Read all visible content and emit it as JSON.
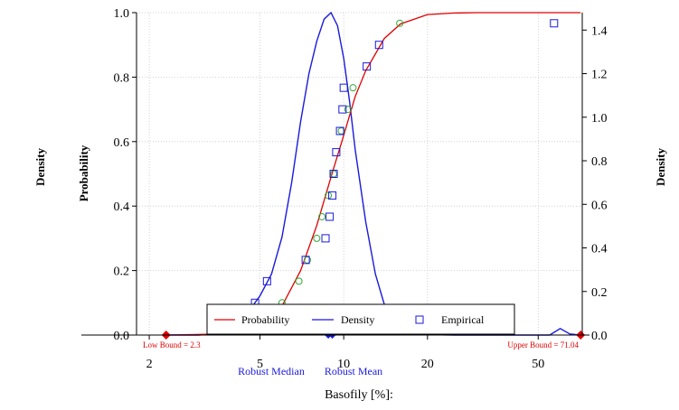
{
  "chart_data": {
    "type": "line",
    "xlabel": "Basofily [%]:",
    "ylabel_left_outer": "Density",
    "ylabel_left": "Probability",
    "ylabel_right": "Density",
    "x_scale": "log",
    "xlim": [
      1.8,
      72
    ],
    "x_ticks": [
      2,
      5,
      10,
      20,
      50
    ],
    "y_left_lim": [
      0,
      1
    ],
    "y_left_ticks": [
      "0.0",
      "0.2",
      "0.4",
      "0.6",
      "0.8",
      "1.0"
    ],
    "y_right_lim": [
      0,
      1.48
    ],
    "y_right_ticks": [
      "0.0",
      "0.2",
      "0.4",
      "0.6",
      "0.8",
      "1.0",
      "1.2",
      "1.4"
    ],
    "grid": true,
    "legend_position": "bottom-center",
    "colors": {
      "probability": "#e00000",
      "density": "#1a1adc",
      "empirical": "#1a1adc",
      "fitted_points": "#33aa33",
      "bounds": "#e00000"
    },
    "legend": {
      "probability": "Probability",
      "density": "Density",
      "empirical": "Empirical"
    },
    "bounds": {
      "low": {
        "value": 2.3,
        "label": "Low Bound = 2.3"
      },
      "upper": {
        "value": 71.04,
        "label": "Upper Bound = 71.04"
      }
    },
    "robust": {
      "median": {
        "value": 8.8,
        "label": "Robust Median"
      },
      "mean": {
        "value": 9.1,
        "label": "Robust Mean"
      }
    },
    "probability_curve": {
      "name": "Probability",
      "x": [
        2.3,
        4,
        5,
        6,
        7,
        8,
        9,
        10,
        11,
        12,
        14,
        16,
        20,
        25,
        30,
        71
      ],
      "y": [
        0.0,
        0.004,
        0.026,
        0.09,
        0.2,
        0.34,
        0.49,
        0.62,
        0.74,
        0.82,
        0.92,
        0.965,
        0.994,
        0.999,
        1.0,
        1.0
      ]
    },
    "density_curve": {
      "name": "Density",
      "x": [
        2.3,
        3,
        3.5,
        4,
        4.5,
        5,
        5.5,
        6,
        6.5,
        7,
        7.5,
        8,
        8.5,
        9,
        9.5,
        10,
        10.5,
        11,
        12,
        13,
        14,
        15,
        16,
        18,
        20,
        25,
        40,
        55,
        60,
        65,
        71
      ],
      "y": [
        0.0,
        0.0,
        0.005,
        0.03,
        0.1,
        0.18,
        0.28,
        0.45,
        0.7,
        0.98,
        1.2,
        1.35,
        1.45,
        1.48,
        1.42,
        1.27,
        1.07,
        0.85,
        0.52,
        0.28,
        0.14,
        0.07,
        0.03,
        0.008,
        0.002,
        0.0,
        0.0,
        0.0,
        0.03,
        0.005,
        0.0
      ]
    },
    "empirical_points": {
      "name": "Empirical",
      "x": [
        4.8,
        5.3,
        7.3,
        8.6,
        8.9,
        9.1,
        9.2,
        9.4,
        9.7,
        9.9,
        10.0,
        12.1,
        13.4,
        57
      ],
      "y": [
        0.1,
        0.167,
        0.233,
        0.3,
        0.367,
        0.433,
        0.5,
        0.567,
        0.633,
        0.7,
        0.767,
        0.833,
        0.9,
        0.967
      ]
    },
    "fitted_points": {
      "x": [
        6.0,
        6.9,
        7.4,
        8.0,
        8.35,
        8.8,
        9.2,
        9.8,
        10.35,
        10.8,
        15.9
      ],
      "y": [
        0.1,
        0.167,
        0.233,
        0.3,
        0.367,
        0.433,
        0.5,
        0.633,
        0.7,
        0.767,
        0.967
      ]
    }
  }
}
